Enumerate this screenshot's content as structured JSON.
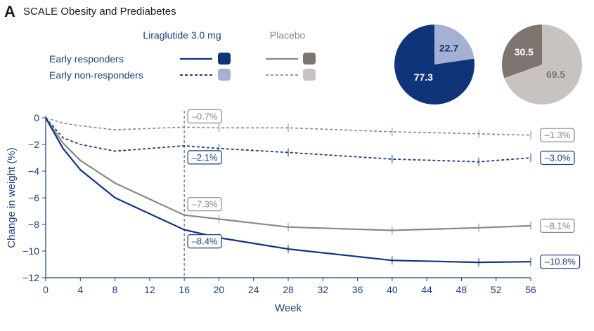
{
  "panel_letter": "A",
  "panel_title": "SCALE Obesity and Prediabetes",
  "legend": {
    "liraglutide_header": "Liraglutide 3.0 mg",
    "placebo_header": "Placebo",
    "row_responders": "Early responders",
    "row_nonresponders": "Early non-responders"
  },
  "colors": {
    "lira_resp": "#0f3479",
    "lira_nonresp": "#a4b1d4",
    "pbo_resp": "#7c7570",
    "pbo_nonresp": "#c8c3c0",
    "navy_text": "#1c3f7a",
    "gray_text": "#8a8785",
    "vline": "#6d7f8f"
  },
  "pies": [
    {
      "name": "liraglutide",
      "slices": [
        {
          "label": "77.3",
          "value": 77.3,
          "color": "#0f3479",
          "text_color": "#ffffff"
        },
        {
          "label": "22.7",
          "value": 22.7,
          "color": "#a4b1d4",
          "text_color": "#0f3479"
        }
      ]
    },
    {
      "name": "placebo",
      "slices": [
        {
          "label": "69.5",
          "value": 69.5,
          "color": "#c8c3c0",
          "text_color": "#7c7570"
        },
        {
          "label": "30.5",
          "value": 30.5,
          "color": "#7c7570",
          "text_color": "#ffffff"
        }
      ]
    }
  ],
  "chart_data": {
    "type": "line",
    "xlabel": "Week",
    "ylabel": "Change in weight (%)",
    "xlim": [
      0,
      56
    ],
    "ylim": [
      -12,
      0
    ],
    "xticks": [
      0,
      4,
      8,
      12,
      16,
      20,
      24,
      28,
      32,
      36,
      40,
      44,
      48,
      52,
      56
    ],
    "yticks": [
      0,
      -2,
      -4,
      -6,
      -8,
      -10,
      -12
    ],
    "reference_week": 16,
    "series": [
      {
        "name": "Placebo early non-responders",
        "color": "#8a8785",
        "dash": "4,3",
        "width": 1.6,
        "x": [
          0,
          2,
          4,
          8,
          16,
          20,
          28,
          40,
          50,
          56
        ],
        "y": [
          0,
          -0.4,
          -0.6,
          -0.9,
          -0.7,
          -0.75,
          -0.75,
          -1.05,
          -1.2,
          -1.3
        ],
        "errbars": [
          20,
          28,
          40,
          50,
          56
        ],
        "annotations": [
          {
            "text": "–0.7%",
            "week": 16,
            "at": "above"
          },
          {
            "text": "–1.3%",
            "week": 56,
            "at": "end"
          }
        ]
      },
      {
        "name": "Liraglutide early non-responders",
        "color": "#1c3f7a",
        "dash": "4,3",
        "width": 1.8,
        "x": [
          0,
          2,
          4,
          8,
          16,
          20,
          28,
          40,
          50,
          56
        ],
        "y": [
          0,
          -1.5,
          -2.0,
          -2.5,
          -2.1,
          -2.3,
          -2.6,
          -3.1,
          -3.3,
          -3.0
        ],
        "errbars": [
          20,
          28,
          40,
          50,
          56
        ],
        "annotations": [
          {
            "text": "–2.1%",
            "week": 16,
            "at": "below"
          },
          {
            "text": "–3.0%",
            "week": 56,
            "at": "end"
          }
        ]
      },
      {
        "name": "Placebo early responders",
        "color": "#8a8785",
        "dash": "",
        "width": 2.2,
        "x": [
          0,
          2,
          4,
          8,
          16,
          20,
          28,
          40,
          50,
          56
        ],
        "y": [
          0,
          -1.9,
          -3.2,
          -4.9,
          -7.3,
          -7.6,
          -8.2,
          -8.45,
          -8.25,
          -8.1
        ],
        "errbars": [
          20,
          28,
          40,
          50,
          56
        ],
        "annotations": [
          {
            "text": "–7.3%",
            "week": 16,
            "at": "above"
          },
          {
            "text": "–8.1%",
            "week": 56,
            "at": "end"
          }
        ]
      },
      {
        "name": "Liraglutide early responders",
        "color": "#0f3479",
        "dash": "",
        "width": 2.2,
        "x": [
          0,
          2,
          4,
          8,
          16,
          20,
          28,
          40,
          50,
          56
        ],
        "y": [
          0,
          -2.3,
          -3.9,
          -6.0,
          -8.4,
          -9.0,
          -9.85,
          -10.7,
          -10.85,
          -10.8
        ],
        "errbars": [
          20,
          28,
          40,
          50,
          56
        ],
        "annotations": [
          {
            "text": "–8.4%",
            "week": 16,
            "at": "below"
          },
          {
            "text": "–10.8%",
            "week": 56,
            "at": "end"
          }
        ]
      }
    ]
  }
}
